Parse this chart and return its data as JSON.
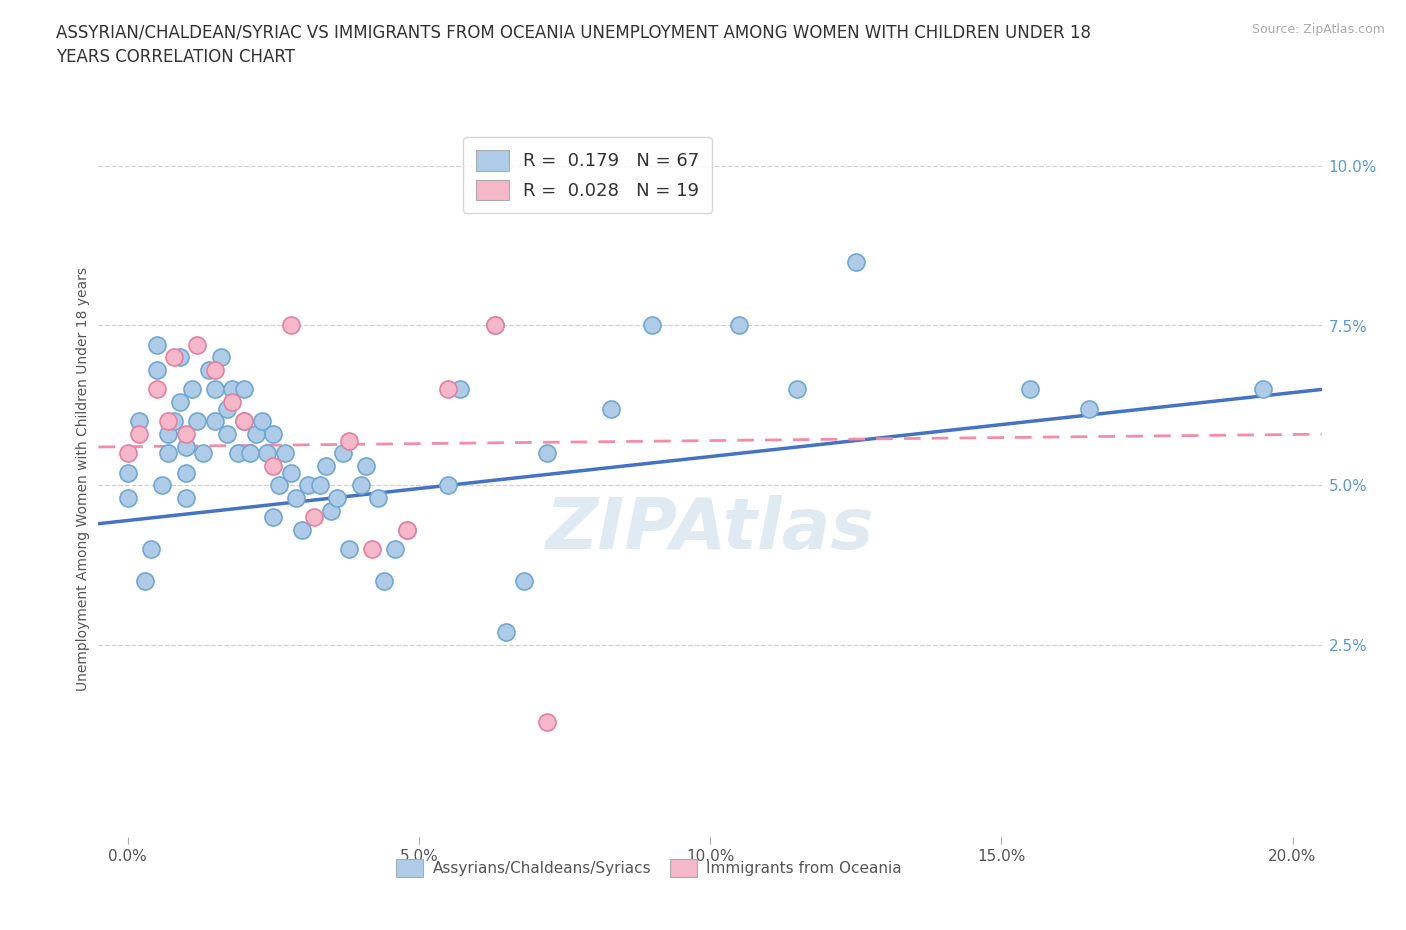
{
  "title_line1": "ASSYRIAN/CHALDEAN/SYRIAC VS IMMIGRANTS FROM OCEANIA UNEMPLOYMENT AMONG WOMEN WITH CHILDREN UNDER 18",
  "title_line2": "YEARS CORRELATION CHART",
  "source": "Source: ZipAtlas.com",
  "xlabel_ticks": [
    "0.0%",
    "5.0%",
    "10.0%",
    "15.0%",
    "20.0%"
  ],
  "xlabel_vals": [
    0.0,
    0.05,
    0.1,
    0.15,
    0.2
  ],
  "ylabel_ticks": [
    "10.0%",
    "7.5%",
    "5.0%",
    "2.5%"
  ],
  "ylabel_vals": [
    0.1,
    0.075,
    0.05,
    0.025
  ],
  "xlim": [
    -0.005,
    0.205
  ],
  "ylim": [
    -0.005,
    0.107
  ],
  "legend1_label": "R =  0.179   N = 67",
  "legend2_label": "R =  0.028   N = 19",
  "legend1_color": "#aecce8",
  "legend2_color": "#f4b8c8",
  "line1_color": "#4472c4",
  "line2_color": "#f48ca8",
  "dot1_facecolor": "#aecce8",
  "dot1_edgecolor": "#6fa8d4",
  "dot2_facecolor": "#f4b8c8",
  "dot2_edgecolor": "#e87fa0",
  "watermark": "ZIPAtlas",
  "background_color": "#ffffff",
  "grid_color": "#d0d0d0",
  "title_fontsize": 12,
  "tick_fontsize": 11,
  "ylabel_fontsize": 10,
  "scatter1_x": [
    0.0,
    0.0,
    0.002,
    0.003,
    0.004,
    0.005,
    0.005,
    0.006,
    0.007,
    0.007,
    0.008,
    0.009,
    0.009,
    0.01,
    0.01,
    0.01,
    0.011,
    0.012,
    0.013,
    0.014,
    0.015,
    0.015,
    0.016,
    0.017,
    0.017,
    0.018,
    0.019,
    0.02,
    0.02,
    0.021,
    0.022,
    0.023,
    0.024,
    0.025,
    0.025,
    0.026,
    0.027,
    0.028,
    0.029,
    0.03,
    0.031,
    0.033,
    0.034,
    0.035,
    0.036,
    0.037,
    0.038,
    0.04,
    0.041,
    0.043,
    0.044,
    0.046,
    0.048,
    0.055,
    0.057,
    0.063,
    0.065,
    0.068,
    0.072,
    0.083,
    0.09,
    0.105,
    0.115,
    0.125,
    0.155,
    0.165,
    0.195
  ],
  "scatter1_y": [
    0.048,
    0.052,
    0.06,
    0.035,
    0.04,
    0.068,
    0.072,
    0.05,
    0.055,
    0.058,
    0.06,
    0.063,
    0.07,
    0.048,
    0.052,
    0.056,
    0.065,
    0.06,
    0.055,
    0.068,
    0.06,
    0.065,
    0.07,
    0.062,
    0.058,
    0.065,
    0.055,
    0.06,
    0.065,
    0.055,
    0.058,
    0.06,
    0.055,
    0.045,
    0.058,
    0.05,
    0.055,
    0.052,
    0.048,
    0.043,
    0.05,
    0.05,
    0.053,
    0.046,
    0.048,
    0.055,
    0.04,
    0.05,
    0.053,
    0.048,
    0.035,
    0.04,
    0.043,
    0.05,
    0.065,
    0.075,
    0.027,
    0.035,
    0.055,
    0.062,
    0.075,
    0.075,
    0.065,
    0.085,
    0.065,
    0.062,
    0.065
  ],
  "scatter2_x": [
    0.0,
    0.002,
    0.005,
    0.007,
    0.008,
    0.01,
    0.012,
    0.015,
    0.018,
    0.02,
    0.025,
    0.028,
    0.032,
    0.038,
    0.042,
    0.048,
    0.055,
    0.063,
    0.072
  ],
  "scatter2_y": [
    0.055,
    0.058,
    0.065,
    0.06,
    0.07,
    0.058,
    0.072,
    0.068,
    0.063,
    0.06,
    0.053,
    0.075,
    0.045,
    0.057,
    0.04,
    0.043,
    0.065,
    0.075,
    0.013
  ],
  "line1_x0": -0.005,
  "line1_x1": 0.205,
  "line1_y0": 0.044,
  "line1_y1": 0.065,
  "line2_x0": -0.005,
  "line2_x1": 0.205,
  "line2_y0": 0.056,
  "line2_y1": 0.058
}
